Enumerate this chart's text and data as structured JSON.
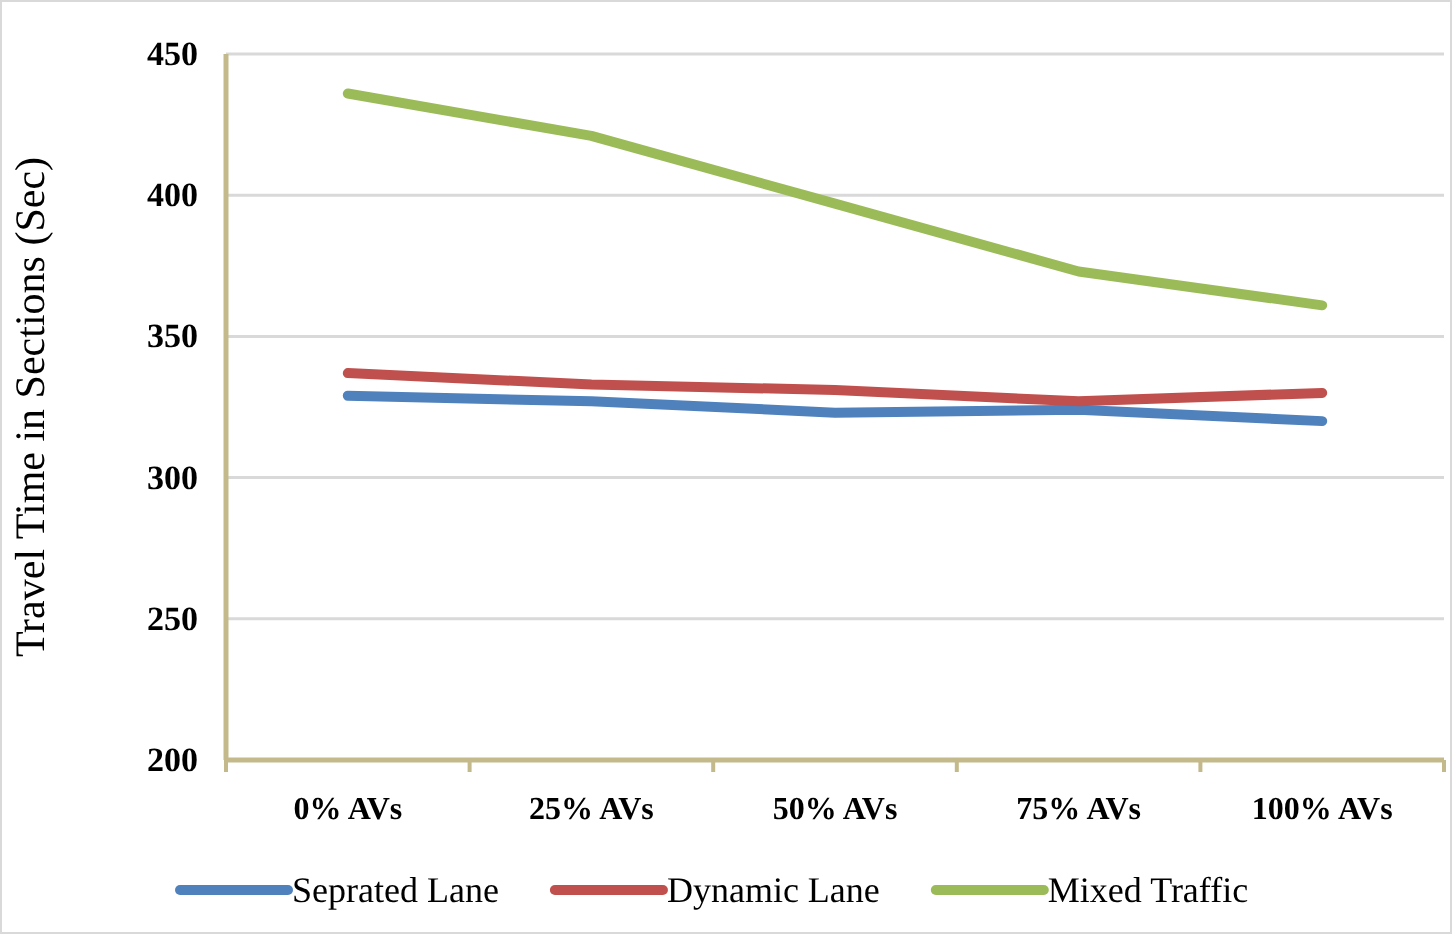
{
  "chart_data": {
    "type": "line",
    "ylabel": "Travel Time in Sections (Sec)",
    "categories": [
      "0% AVs",
      "25% AVs",
      "50% AVs",
      "75% AVs",
      "100% AVs"
    ],
    "series": [
      {
        "name": "Seprated Lane",
        "color": "#4f81bd",
        "values": [
          329,
          327,
          323,
          324,
          320
        ]
      },
      {
        "name": "Dynamic Lane",
        "color": "#c0504d",
        "values": [
          337,
          333,
          331,
          327,
          330
        ]
      },
      {
        "name": "Mixed Traffic",
        "color": "#9bbb59",
        "values": [
          436,
          421,
          397,
          373,
          361
        ]
      }
    ],
    "ylim": [
      200,
      450
    ],
    "yticks": [
      200,
      250,
      300,
      350,
      400,
      450
    ],
    "grid": "y",
    "legend": "bottom",
    "marker": "none",
    "line_style": "solid"
  }
}
